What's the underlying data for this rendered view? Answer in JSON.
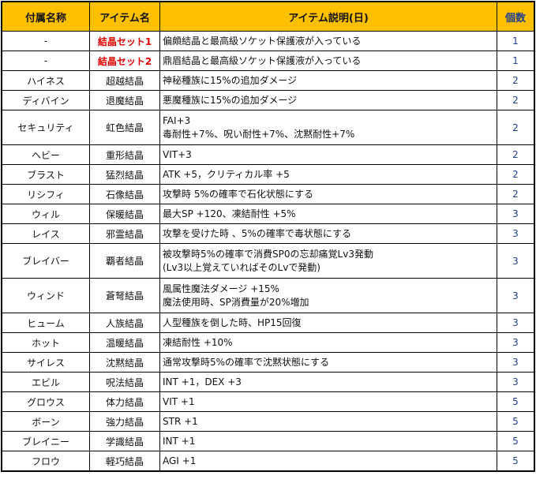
{
  "headers": [
    "付属名称",
    "アイテム名",
    "アイテム説明(日)",
    "個数"
  ],
  "colors": {
    "header_bg": "#FFC000",
    "highlight_text": "#e00000",
    "count_text": "#1f3f8f"
  },
  "rows": [
    {
      "suffix": "-",
      "item": "結晶セット1",
      "highlight": true,
      "desc": [
        "偏頗結晶と最高級ソケット保護液が入っている"
      ],
      "count": "1"
    },
    {
      "suffix": "-",
      "item": "結晶セット2",
      "highlight": true,
      "desc": [
        "鼎眉結晶と最高級ソケット保護液が入っている"
      ],
      "count": "1"
    },
    {
      "suffix": "ハイネス",
      "item": "超越結晶",
      "desc": [
        "神秘種族に15%の追加ダメージ"
      ],
      "count": "2"
    },
    {
      "suffix": "ディバイン",
      "item": "退魔結晶",
      "desc": [
        "悪魔種族に15%の追加ダメージ"
      ],
      "count": "2"
    },
    {
      "suffix": "セキュリティ",
      "item": "虹色結晶",
      "desc": [
        "FAI+3",
        "毒耐性+7%、呪い耐性+7%、沈黙耐性+7%"
      ],
      "count": "2"
    },
    {
      "suffix": "ヘビー",
      "item": "重形結晶",
      "desc": [
        "VIT+3"
      ],
      "count": "2"
    },
    {
      "suffix": "ブラスト",
      "item": "猛烈結晶",
      "desc": [
        "ATK +5，クリティカル率 +5"
      ],
      "count": "2"
    },
    {
      "suffix": "リシフィ",
      "item": "石像結晶",
      "desc": [
        "攻撃時 5%の確率で石化状態にする"
      ],
      "count": "2"
    },
    {
      "suffix": "ウィル",
      "item": "保暖結晶",
      "desc": [
        "最大SP +120、凍結耐性 +5%"
      ],
      "count": "3"
    },
    {
      "suffix": "レイス",
      "item": "邪霊結晶",
      "desc": [
        "攻撃を受けた時 、5%の確率で毒状態にする"
      ],
      "count": "3"
    },
    {
      "suffix": "ブレイバー",
      "item": "覇者結晶",
      "desc": [
        "被攻撃時5%の確率で消費SP0の忘却痛覚Lv3発動",
        "(Lv3以上覚えていればそのLvで発動)"
      ],
      "count": "3"
    },
    {
      "suffix": "ウィンド",
      "item": "蒼弩結晶",
      "desc": [
        "風属性魔法ダメージ +15%",
        "魔法使用時、SP消費量が20%増加"
      ],
      "count": "3"
    },
    {
      "suffix": "ヒューム",
      "item": "人族結晶",
      "desc": [
        "人型種族を倒した時、HP15回復"
      ],
      "count": "3"
    },
    {
      "suffix": "ホット",
      "item": "温暖結晶",
      "desc": [
        "凍結耐性 +10%"
      ],
      "count": "3"
    },
    {
      "suffix": "サイレス",
      "item": "沈黙結晶",
      "desc": [
        "通常攻撃時5%の確率で沈黙状態にする"
      ],
      "count": "3"
    },
    {
      "suffix": "エビル",
      "item": "呪法結晶",
      "desc": [
        "INT +1，DEX +3"
      ],
      "count": "3"
    },
    {
      "suffix": "グロウス",
      "item": "体力結晶",
      "desc": [
        "VIT +1"
      ],
      "count": "5"
    },
    {
      "suffix": "ボーン",
      "item": "強力結晶",
      "desc": [
        "STR +1"
      ],
      "count": "5"
    },
    {
      "suffix": "ブレイニー",
      "item": "学識結晶",
      "desc": [
        "INT +1"
      ],
      "count": "5"
    },
    {
      "suffix": "フロウ",
      "item": "軽巧結晶",
      "desc": [
        "AGI +1"
      ],
      "count": "5"
    }
  ]
}
